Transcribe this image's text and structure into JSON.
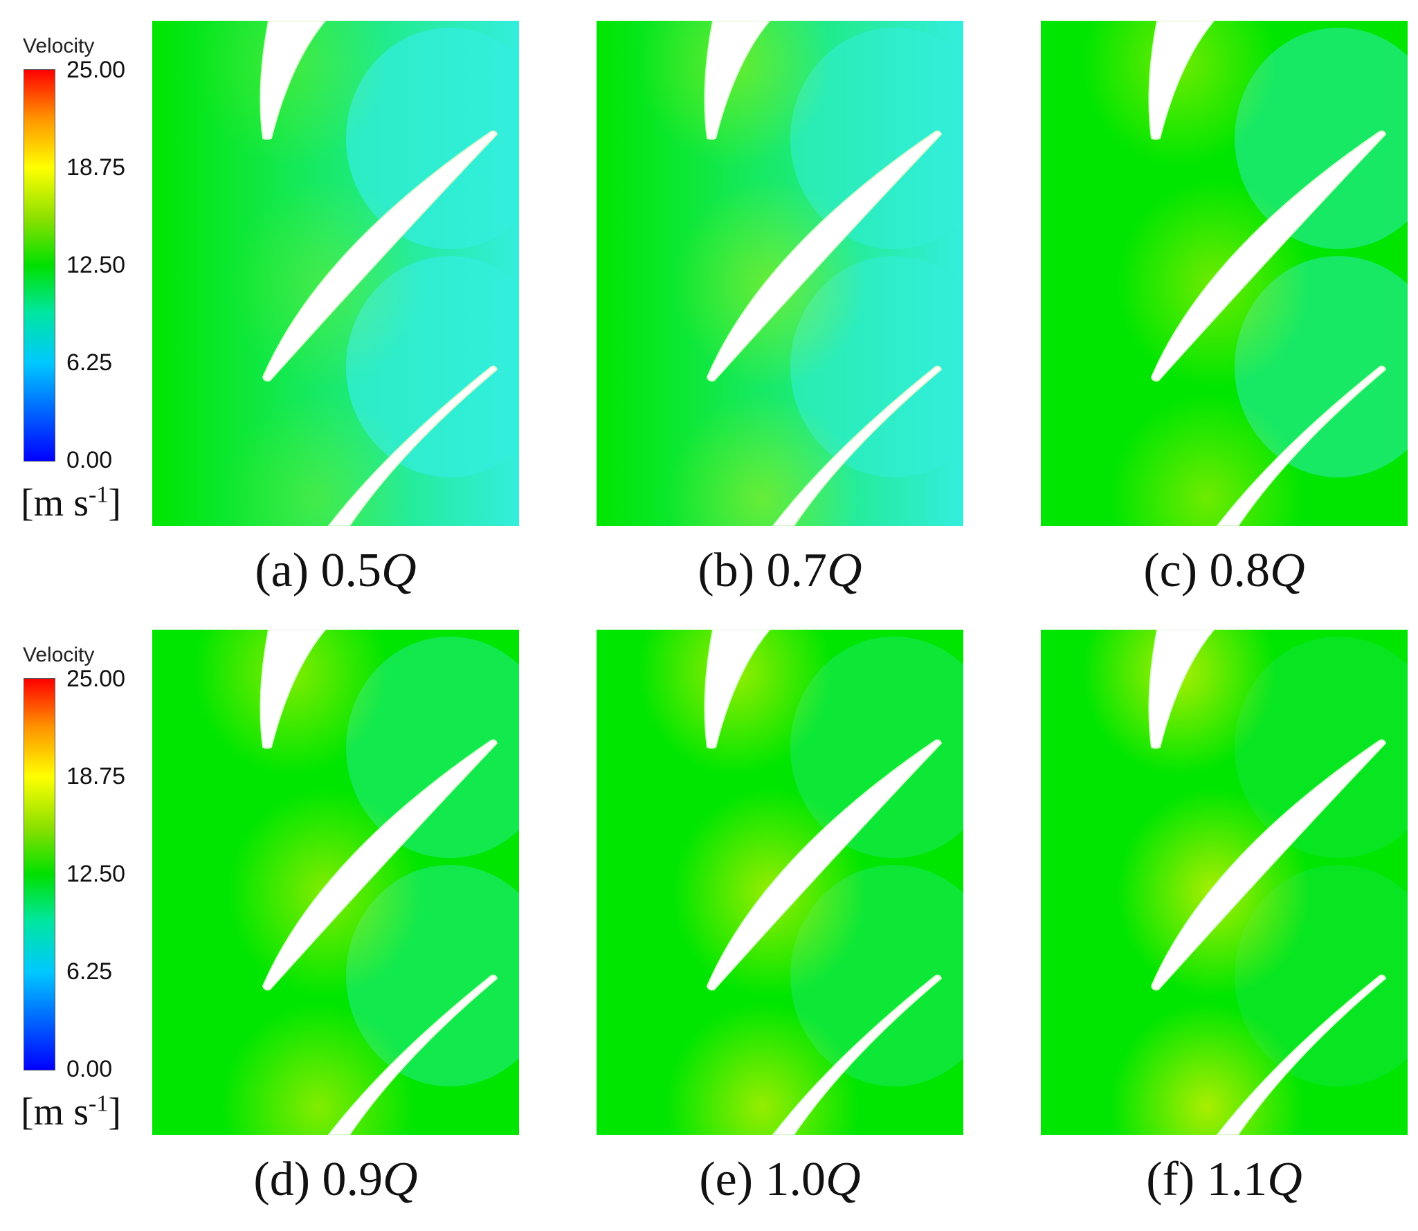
{
  "legend": {
    "title": "Velocity",
    "ticks": [
      "25.00",
      "18.75",
      "12.50",
      "6.25",
      "0.00"
    ],
    "unit_base": "[m s",
    "unit_exp": "-1",
    "unit_close": "]"
  },
  "panels": [
    {
      "label": "(a) 0.5",
      "q": "Q",
      "intensity": 0.5
    },
    {
      "label": "(b) 0.7",
      "q": "Q",
      "intensity": 0.7
    },
    {
      "label": "(c) 0.8",
      "q": "Q",
      "intensity": 0.8
    },
    {
      "label": "(d) 0.9",
      "q": "Q",
      "intensity": 0.9
    },
    {
      "label": "(e) 1.0",
      "q": "Q",
      "intensity": 1.0
    },
    {
      "label": "(f) 1.1",
      "q": "Q",
      "intensity": 1.1
    }
  ],
  "colors": {
    "low": "#00ff88",
    "mid": "#00e600",
    "high": "#c8f000",
    "cyan": "#33eedd"
  }
}
